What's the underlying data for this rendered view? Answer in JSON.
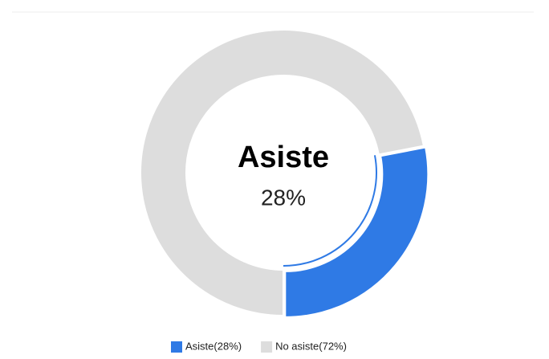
{
  "chart_data": {
    "type": "donut",
    "categories": [
      "Asiste",
      "No asiste"
    ],
    "values": [
      28,
      72
    ],
    "value_labels": [
      "28%",
      "72%"
    ],
    "legend_labels": [
      "Asiste(28%)",
      "No asiste(72%)"
    ],
    "colors": [
      "#2f7ae5",
      "#dddddd"
    ]
  }
}
